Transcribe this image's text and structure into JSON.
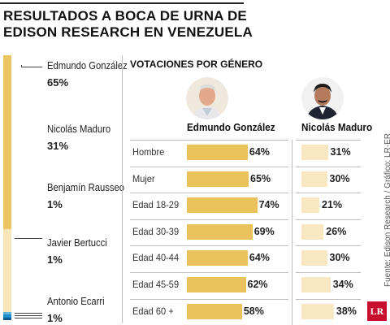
{
  "title": {
    "line1": "RESULTADOS A BOCA DE URNA DE",
    "line2": "EDISON RESEARCH EN VENEZUELA"
  },
  "colors": {
    "gonzalez": "#e9c25c",
    "maduro": "#f8e7c0",
    "text": "#222222"
  },
  "candidates": [
    {
      "name": "Edmundo González",
      "pct_label": "65%",
      "value": 65,
      "color": "#eac561"
    },
    {
      "name": "Nicolás Maduro",
      "pct_label": "31%",
      "value": 31,
      "color": "#f7e4b8"
    },
    {
      "name": "Benjamín Rausseo",
      "pct_label": "1%",
      "value": 1,
      "color": "#5fb3d9"
    },
    {
      "name": "Javier Bertucci",
      "pct_label": "1%",
      "value": 1,
      "color": "#1f8bc9"
    },
    {
      "name": "Antonio Ecarri",
      "pct_label": "1%",
      "value": 1,
      "color": "#0b5a92"
    }
  ],
  "gender_panel": {
    "title": "VOTACIONES POR GÉNERO",
    "col1": "Edmundo González",
    "col2": "Nicolás Maduro",
    "avatar1_icon": "candidate-photo-icon",
    "avatar2_icon": "candidate-photo-icon"
  },
  "chart_data": [
    {
      "type": "bar",
      "title": "",
      "categories": [
        "Edmundo González",
        "Nicolás Maduro",
        "Benjamín Rausseo",
        "Javier Bertucci",
        "Antonio Ecarri"
      ],
      "values": [
        65,
        31,
        1,
        1,
        1
      ]
    },
    {
      "type": "bar",
      "title": "VOTACIONES POR GÉNERO",
      "categories": [
        "Hombre",
        "Mujer",
        "Edad 18-29",
        "Edad 30-39",
        "Edad 40-44",
        "Edad 45-59",
        "Edad 60 +"
      ],
      "series": [
        {
          "name": "Edmundo González",
          "values": [
            64,
            65,
            74,
            69,
            64,
            62,
            58
          ],
          "labels": [
            "64%",
            "65%",
            "74%",
            "69%",
            "64%",
            "62%",
            "58%"
          ]
        },
        {
          "name": "Nicolás Maduro",
          "values": [
            31,
            30,
            21,
            26,
            30,
            34,
            38
          ],
          "labels": [
            "31%",
            "30%",
            "21%",
            "26%",
            "30%",
            "34%",
            "38%"
          ]
        }
      ]
    }
  ],
  "source": "Fuente: Edison Research / Gráfico: LR-ER",
  "logo_text": "LR"
}
